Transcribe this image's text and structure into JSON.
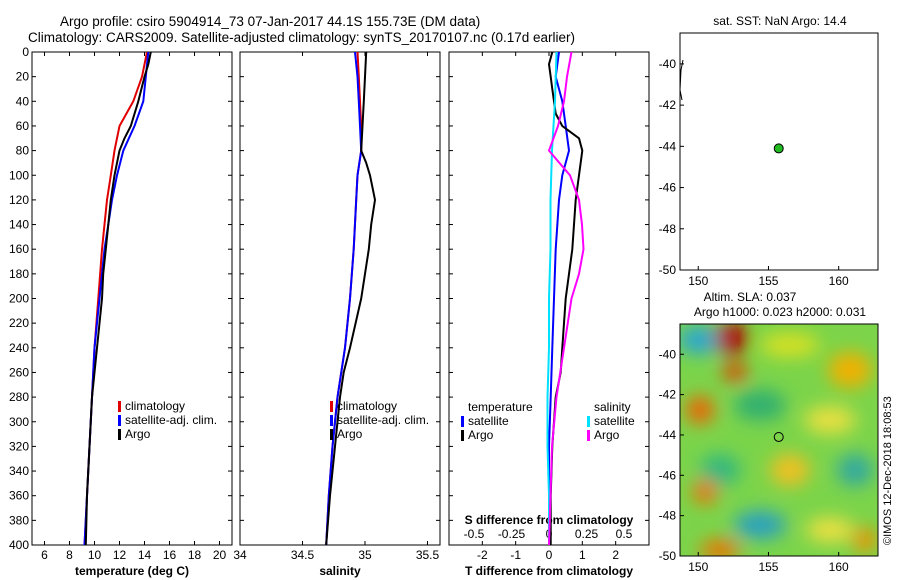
{
  "title_line1": "Argo profile: csiro 5904914_73 07-Jan-2017 44.1S 155.73E (DM data)",
  "title_line2": "Climatology: CARS2009. Satellite-adjusted climatology: synTS_20170107.nc (0.17d earlier)",
  "watermark": "©IMOS 12-Dec-2018 18:08:53",
  "colors": {
    "red": "#e00000",
    "blue": "#0000ff",
    "black": "#000000",
    "cyan": "#00e0ff",
    "magenta": "#ff00ff",
    "dot": "#22bb22"
  },
  "chart_data": [
    {
      "id": "temp",
      "type": "line",
      "xlabel": "temperature (deg C)",
      "ylabel": "",
      "xlim": [
        5,
        21
      ],
      "ylim": [
        0,
        400
      ],
      "xticks": [
        "6",
        "8",
        "10",
        "12",
        "14",
        "16",
        "18",
        "20"
      ],
      "xtick_values": [
        6,
        8,
        10,
        12,
        14,
        16,
        18,
        20
      ],
      "yticks": [
        "0",
        "20",
        "40",
        "60",
        "80",
        "100",
        "120",
        "140",
        "160",
        "180",
        "200",
        "220",
        "240",
        "260",
        "280",
        "300",
        "320",
        "340",
        "360",
        "380",
        "400"
      ],
      "legend": [
        "climatology",
        "satellite-adj. clim.",
        "Argo"
      ],
      "legend_colors": [
        "red",
        "blue",
        "black"
      ],
      "series": [
        {
          "name": "climatology",
          "color": "red",
          "y": [
            0,
            10,
            20,
            40,
            60,
            80,
            100,
            120,
            140,
            160,
            200,
            240,
            280,
            320,
            360,
            400
          ],
          "x": [
            14.2,
            14.0,
            13.8,
            13.1,
            12.0,
            11.6,
            11.3,
            11.0,
            10.8,
            10.6,
            10.3,
            10.0,
            9.8,
            9.6,
            9.4,
            9.2
          ]
        },
        {
          "name": "satellite-adj. clim.",
          "color": "blue",
          "y": [
            0,
            10,
            20,
            40,
            60,
            80,
            100,
            120,
            140,
            160,
            200,
            240,
            280,
            320,
            360,
            400
          ],
          "x": [
            14.3,
            14.2,
            14.1,
            13.9,
            13.2,
            12.3,
            11.8,
            11.4,
            11.1,
            10.8,
            10.4,
            10.0,
            9.8,
            9.6,
            9.4,
            9.2
          ]
        },
        {
          "name": "Argo",
          "color": "black",
          "y": [
            0,
            10,
            20,
            40,
            60,
            70,
            80,
            100,
            120,
            140,
            160,
            180,
            200,
            220,
            240,
            260,
            280,
            320,
            360,
            400
          ],
          "x": [
            14.5,
            14.3,
            14.0,
            13.5,
            12.9,
            12.4,
            12.0,
            11.6,
            11.3,
            11.1,
            10.9,
            10.7,
            10.6,
            10.4,
            10.2,
            10.0,
            9.8,
            9.6,
            9.4,
            9.3
          ]
        }
      ]
    },
    {
      "id": "sal",
      "type": "line",
      "xlabel": "salinity",
      "xlim": [
        34,
        35.6
      ],
      "ylim": [
        0,
        400
      ],
      "xticks": [
        "34",
        "34.5",
        "35",
        "35.5"
      ],
      "xtick_values": [
        34,
        34.5,
        35,
        35.5
      ],
      "legend": [
        "climatology",
        "satellite-adj. clim.",
        "Argo"
      ],
      "legend_colors": [
        "red",
        "blue",
        "black"
      ],
      "series": [
        {
          "name": "climatology",
          "color": "red",
          "y": [
            0,
            20,
            40,
            60,
            80,
            100,
            120,
            160,
            200,
            240,
            280,
            320,
            360,
            400
          ],
          "x": [
            34.94,
            34.95,
            34.96,
            34.97,
            34.97,
            34.94,
            34.93,
            34.91,
            34.88,
            34.84,
            34.78,
            34.74,
            34.71,
            34.69
          ]
        },
        {
          "name": "satellite-adj. clim.",
          "color": "blue",
          "y": [
            0,
            20,
            40,
            60,
            80,
            100,
            120,
            160,
            200,
            240,
            280,
            320,
            360,
            400
          ],
          "x": [
            34.92,
            34.94,
            34.95,
            34.96,
            34.97,
            34.94,
            34.93,
            34.91,
            34.88,
            34.84,
            34.78,
            34.74,
            34.71,
            34.69
          ]
        },
        {
          "name": "Argo",
          "color": "black",
          "y": [
            0,
            20,
            40,
            60,
            80,
            90,
            100,
            110,
            120,
            140,
            160,
            200,
            240,
            260,
            280,
            320,
            360,
            400
          ],
          "x": [
            35.01,
            35.0,
            34.99,
            34.98,
            34.97,
            35.01,
            35.04,
            35.06,
            35.08,
            35.05,
            35.03,
            34.97,
            34.88,
            34.83,
            34.8,
            34.76,
            34.72,
            34.69
          ]
        }
      ]
    },
    {
      "id": "diff",
      "type": "line",
      "xlabel": "T difference from climatology",
      "xlim": [
        -3,
        3
      ],
      "ylim": [
        0,
        400
      ],
      "xticks": [
        "-2",
        "-1",
        "0",
        "1",
        "2"
      ],
      "xtick_values": [
        -2,
        -1,
        0,
        1,
        2
      ],
      "top_label": "S difference from climatology",
      "top_ticks": [
        "-0.5",
        "-0.25",
        "0",
        "0.25",
        "0.5"
      ],
      "top_tick_values": [
        -0.5,
        -0.25,
        0,
        0.25,
        0.5
      ],
      "legend_left_title": "temperature",
      "legend_left": [
        "satellite",
        "Argo"
      ],
      "legend_left_colors": [
        "blue",
        "black"
      ],
      "legend_right_title": "salinity",
      "legend_right": [
        "satellite",
        "Argo"
      ],
      "legend_right_colors": [
        "cyan",
        "magenta"
      ],
      "series": [
        {
          "name": "T satellite",
          "color": "blue",
          "y": [
            0,
            20,
            40,
            60,
            80,
            100,
            120,
            160,
            200,
            240,
            280,
            320,
            360,
            400
          ],
          "x": [
            0.3,
            0.2,
            0.4,
            0.5,
            0.6,
            0.4,
            0.3,
            0.2,
            0.15,
            0.1,
            0.05,
            0.0,
            0.0,
            0.0
          ]
        },
        {
          "name": "T Argo",
          "color": "black",
          "y": [
            0,
            10,
            20,
            30,
            40,
            50,
            60,
            70,
            80,
            100,
            120,
            140,
            160,
            180,
            200,
            220,
            240,
            260,
            280,
            320,
            360,
            400
          ],
          "x": [
            0.1,
            0.0,
            0.05,
            0.1,
            0.15,
            0.2,
            0.4,
            0.9,
            1.0,
            0.9,
            0.8,
            0.75,
            0.7,
            0.6,
            0.5,
            0.45,
            0.4,
            0.35,
            0.2,
            0.1,
            0.05,
            0.05
          ]
        },
        {
          "name": "S satellite",
          "color": "cyan",
          "y": [
            0,
            40,
            80,
            120,
            160,
            200,
            240,
            280,
            320,
            360,
            400
          ],
          "x": [
            0.05,
            0.04,
            0.02,
            0.01,
            0.01,
            0.0,
            0.0,
            -0.01,
            -0.01,
            0.0,
            0.0
          ]
        },
        {
          "name": "S Argo",
          "color": "magenta",
          "y": [
            0,
            20,
            40,
            60,
            80,
            100,
            120,
            140,
            160,
            180,
            200,
            240,
            280,
            320,
            360,
            400
          ],
          "x": [
            0.15,
            0.12,
            0.1,
            0.06,
            0.0,
            0.14,
            0.2,
            0.22,
            0.23,
            0.2,
            0.15,
            0.1,
            0.05,
            0.02,
            0.01,
            0.0
          ]
        }
      ]
    }
  ],
  "sst_panel": {
    "title": "sat. SST: NaN Argo: 14.4",
    "xticks": [
      "150",
      "155",
      "160"
    ],
    "xtick_values": [
      150,
      155,
      160
    ],
    "yticks": [
      "-40",
      "-42",
      "-44",
      "-46",
      "-48",
      "-50"
    ],
    "ytick_values": [
      -40,
      -42,
      -44,
      -46,
      -48,
      -50
    ],
    "xlim": [
      148.7,
      162.8
    ],
    "ylim": [
      -50,
      -38.5
    ],
    "point": {
      "lon": 155.73,
      "lat": -44.1
    }
  },
  "sla_panel": {
    "title1": "Altim. SLA: 0.037",
    "title2": "Argo h1000: 0.023 h2000: 0.031",
    "xticks": [
      "150",
      "155",
      "160"
    ],
    "xtick_values": [
      150,
      155,
      160
    ],
    "yticks": [
      "-40",
      "-42",
      "-44",
      "-46",
      "-48",
      "-50"
    ],
    "ytick_values": [
      -40,
      -42,
      -44,
      -46,
      -48,
      -50
    ],
    "xlim": [
      148.7,
      162.8
    ],
    "ylim": [
      -50,
      -38.5
    ],
    "point": {
      "lon": 155.73,
      "lat": -44.1
    }
  }
}
